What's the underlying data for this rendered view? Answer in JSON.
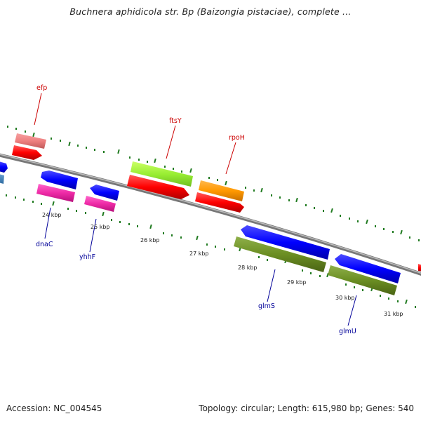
{
  "title": "Buchnera aphidicola str. Bp (Baizongia pistaciae), complete ...",
  "footer": {
    "accession": "Accession: NC_004545",
    "stats": "Topology: circular; Length: 615,980 bp; Genes: 540"
  },
  "colors": {
    "backbone": "#8a8a8a",
    "tick": "#1f7a1f",
    "label_forward": "#cc0000",
    "label_reverse": "#000099"
  },
  "kbp_labels": [
    "24 kbp",
    "25 kbp",
    "26 kbp",
    "27 kbp",
    "28 kbp",
    "29 kbp",
    "30 kbp",
    "31 kbp"
  ],
  "gene_labels": {
    "efp": "efp",
    "ftsY": "ftsY",
    "rpoH": "rpoH",
    "dnaC": "dnaC",
    "yhhF": "yhhF",
    "glmS": "glmS",
    "glmU": "glmU"
  }
}
